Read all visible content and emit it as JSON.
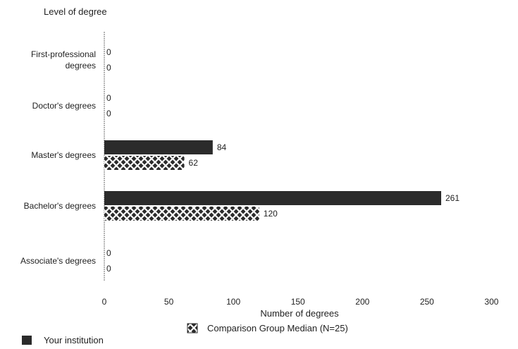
{
  "chart_data": {
    "type": "bar",
    "orientation": "horizontal",
    "ylabel": "Level of degree",
    "xlabel": "Number of degrees",
    "categories": [
      [
        "First-professional",
        "degrees"
      ],
      [
        "Doctor's degrees"
      ],
      [
        "Master's degrees"
      ],
      [
        "Bachelor's degrees"
      ],
      [
        "Associate's degrees"
      ]
    ],
    "series": [
      {
        "name": "Your institution",
        "values": [
          0,
          0,
          84,
          261,
          0
        ],
        "color": "#2b2b2b",
        "pattern": "solid"
      },
      {
        "name": "Comparison Group Median (N=25)",
        "values": [
          0,
          0,
          62,
          120,
          0
        ],
        "color": "#2b2b2b",
        "pattern": "crosshatch"
      }
    ],
    "value_labels": [
      [
        "0",
        "0"
      ],
      [
        "0",
        "0"
      ],
      [
        "84",
        "62"
      ],
      [
        "261",
        "120"
      ],
      [
        "0",
        "0"
      ]
    ],
    "xlim": [
      0,
      300
    ],
    "xticks": [
      0,
      50,
      100,
      150,
      200,
      250,
      300
    ],
    "grid": false,
    "legend_position": "bottom"
  }
}
